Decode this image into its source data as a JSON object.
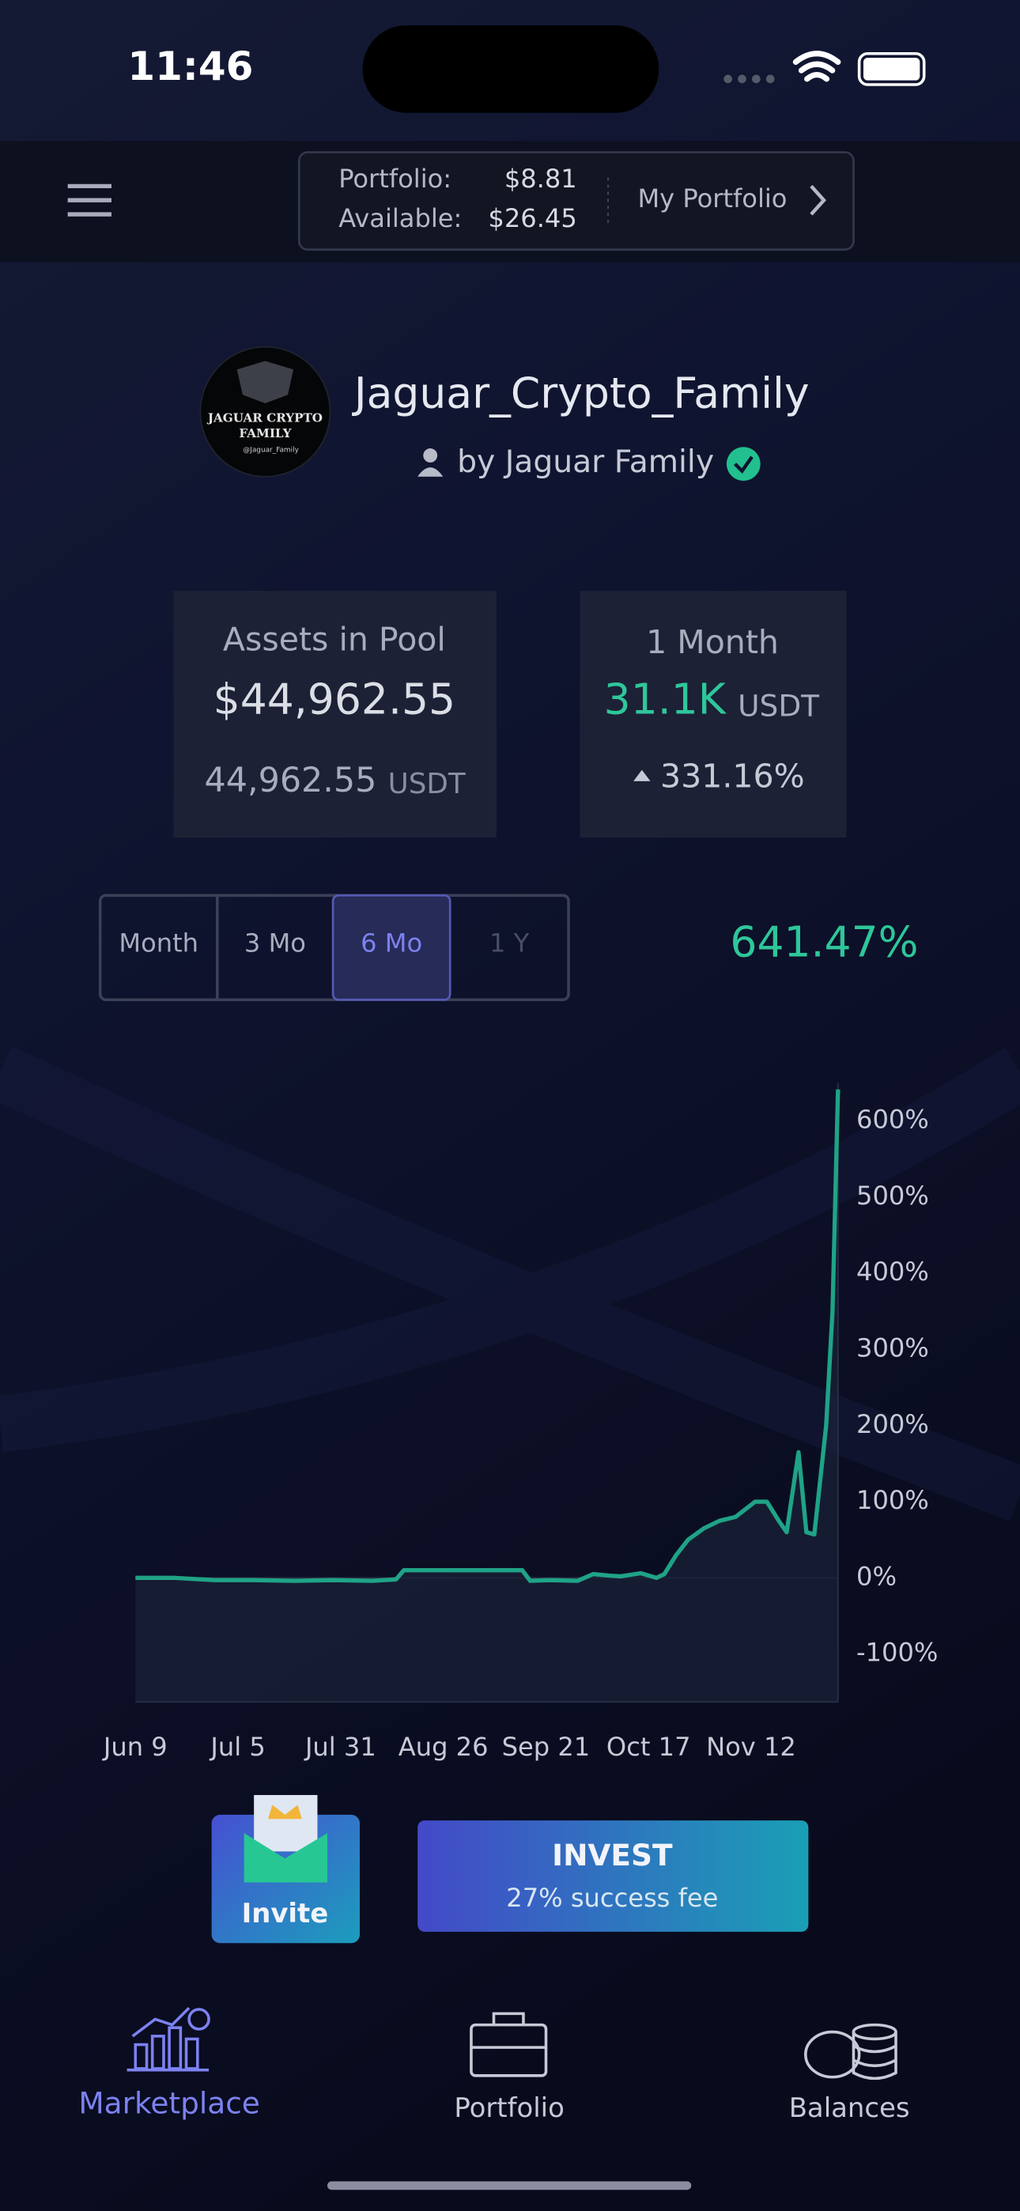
{
  "status_bar": {
    "time": "11:46"
  },
  "header": {
    "portfolio_label": "Portfolio:",
    "portfolio_value": "$8.81",
    "available_label": "Available:",
    "available_value": "$26.45",
    "my_portfolio": "My Portfolio"
  },
  "profile": {
    "avatar_text": [
      "JAGUAR CRYPTO",
      "FAMILY",
      "@Jaguar_Family"
    ],
    "name": "Jaguar_Crypto_Family",
    "by": "by Jaguar Family"
  },
  "stats": {
    "assets": {
      "label": "Assets in Pool",
      "usd": "$44,962.55",
      "amount": "44,962.55",
      "unit": "USDT"
    },
    "month": {
      "label": "1 Month",
      "amount": "31.1K",
      "unit": "USDT",
      "change": "331.16%"
    }
  },
  "range_tabs": {
    "tabs": [
      "Month",
      "3 Mo",
      "6 Mo",
      "1 Y"
    ],
    "selected": 2,
    "return": "641.47%"
  },
  "chart_data": {
    "type": "line",
    "color": "#1fa386",
    "x": [
      0,
      10,
      20,
      30,
      40,
      50,
      60,
      66,
      68,
      80,
      90,
      98,
      100,
      105,
      112,
      116,
      120,
      123,
      128,
      132,
      134,
      137,
      140,
      144,
      148,
      152,
      157,
      160,
      163,
      165,
      168,
      170,
      172,
      175,
      176.6,
      178
    ],
    "values": [
      0,
      0,
      -3,
      -3,
      -4,
      -3,
      -4,
      -2,
      10,
      10,
      10,
      10,
      -4,
      -3,
      -4,
      5,
      3,
      2,
      6,
      0,
      5,
      30,
      50,
      65,
      75,
      80,
      100,
      100,
      75,
      60,
      165,
      60,
      57,
      200,
      350,
      641.47
    ],
    "xlim": [
      0,
      178
    ],
    "xticks": [
      {
        "value": 0,
        "label": "Jun 9"
      },
      {
        "value": 26,
        "label": "Jul 5"
      },
      {
        "value": 52,
        "label": "Jul 31"
      },
      {
        "value": 78,
        "label": "Aug 26"
      },
      {
        "value": 104,
        "label": "Sep 21"
      },
      {
        "value": 130,
        "label": "Oct 17"
      },
      {
        "value": 156,
        "label": "Nov 12"
      }
    ],
    "ylim": [
      -163,
      650
    ],
    "yticks": [
      {
        "value": 600,
        "label": "600%"
      },
      {
        "value": 500,
        "label": "500%"
      },
      {
        "value": 400,
        "label": "400%"
      },
      {
        "value": 300,
        "label": "300%"
      },
      {
        "value": 200,
        "label": "200%"
      },
      {
        "value": 100,
        "label": "100%"
      },
      {
        "value": 0,
        "label": "0%"
      },
      {
        "value": -100,
        "label": "-100%"
      }
    ]
  },
  "actions": {
    "invite": "Invite",
    "invest": "INVEST",
    "fee": "27% success fee"
  },
  "tab_bar": {
    "items": [
      "Marketplace",
      "Portfolio",
      "Balances"
    ],
    "selected": 0
  }
}
